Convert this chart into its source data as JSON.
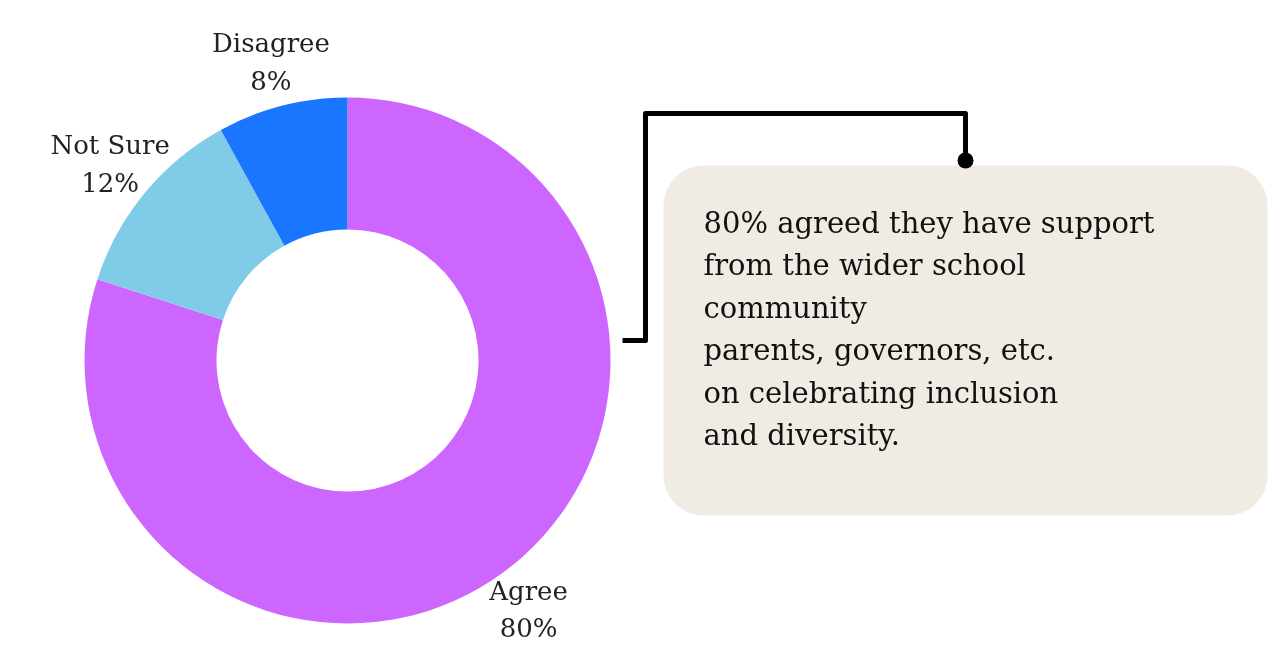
{
  "chart_data": {
    "type": "donut",
    "categories": [
      "Agree",
      "Not Sure",
      "Disagree"
    ],
    "values": [
      80,
      12,
      8
    ],
    "colors": [
      "#cc66ff",
      "#80cce8",
      "#1a75ff"
    ],
    "value_labels": [
      "80%",
      "12%",
      "8%"
    ],
    "annotations": [
      "80% agreed they have support\nfrom the wider school\ncommunity\nparents, governors, etc.\non celebrating inclusion\nand diversity."
    ]
  }
}
